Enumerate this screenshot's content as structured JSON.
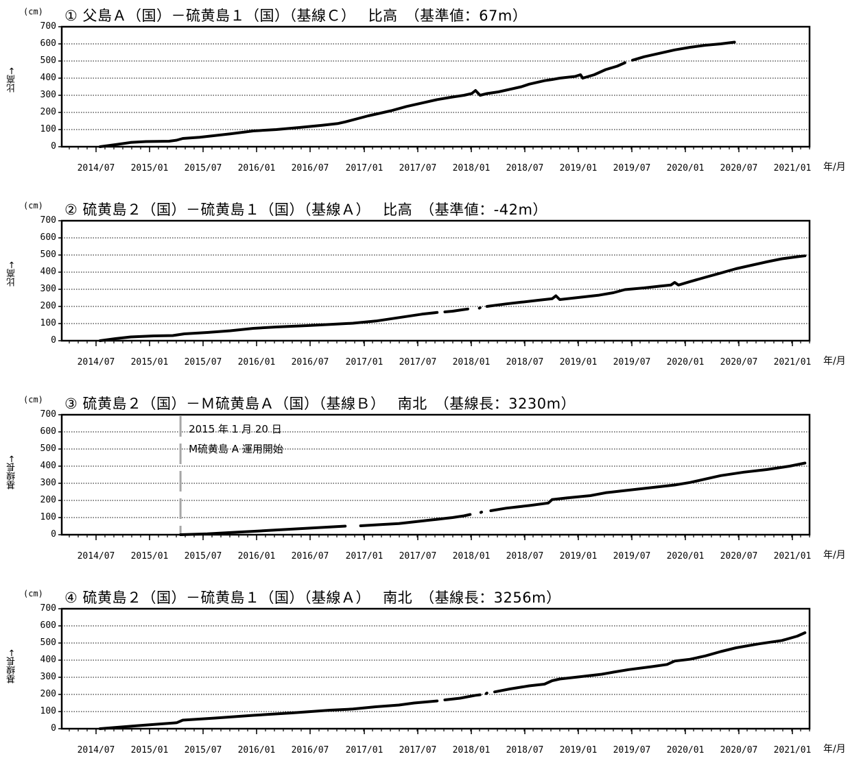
{
  "chart_data": [
    {
      "type": "line",
      "title": "① 父島Ａ（国）－硫黄島１（国）（基線Ｃ）　 比高　（基準値：67m）",
      "unit": "(cm)",
      "ylabel": "比高→",
      "xlabel": "年/月",
      "ylim": [
        0,
        700
      ],
      "yticks": [
        "0",
        "100",
        "200",
        "300",
        "400",
        "500",
        "600",
        "700"
      ],
      "xticks": [
        "2014/07",
        "2015/01",
        "2015/07",
        "2016/01",
        "2016/07",
        "2017/01",
        "2017/07",
        "2018/01",
        "2018/07",
        "2019/01",
        "2019/07",
        "2020/01",
        "2020/07",
        "2021/01"
      ],
      "grid": true,
      "series": [
        {
          "segments": [
            [
              [
                2014.0,
                0
              ],
              [
                2014.2,
                12
              ],
              [
                2014.4,
                25
              ],
              [
                2014.6,
                30
              ],
              [
                2014.9,
                32
              ],
              [
                2015.0,
                38
              ],
              [
                2015.08,
                48
              ],
              [
                2015.3,
                55
              ],
              [
                2015.5,
                65
              ],
              [
                2015.7,
                75
              ],
              [
                2016.0,
                92
              ],
              [
                2016.3,
                100
              ],
              [
                2016.6,
                112
              ],
              [
                2016.9,
                125
              ],
              [
                2017.1,
                135
              ],
              [
                2017.2,
                145
              ],
              [
                2017.5,
                180
              ],
              [
                2017.8,
                210
              ],
              [
                2018.0,
                235
              ],
              [
                2018.2,
                255
              ],
              [
                2018.4,
                275
              ],
              [
                2018.6,
                290
              ],
              [
                2018.75,
                300
              ],
              [
                2018.85,
                310
              ],
              [
                2018.9,
                328
              ],
              [
                2018.96,
                300
              ],
              [
                2019.05,
                310
              ],
              [
                2019.2,
                320
              ],
              [
                2019.5,
                350
              ],
              [
                2019.6,
                365
              ],
              [
                2019.8,
                385
              ],
              [
                2019.9,
                392
              ],
              [
                2020.0,
                400
              ],
              [
                2020.2,
                410
              ],
              [
                2020.27,
                420
              ],
              [
                2020.3,
                400
              ],
              [
                2020.45,
                420
              ],
              [
                2020.6,
                450
              ],
              [
                2020.75,
                470
              ],
              [
                2020.85,
                490
              ]
            ],
            [
              [
                2020.95,
                505
              ],
              [
                2021.1,
                525
              ],
              [
                2021.3,
                545
              ],
              [
                2021.5,
                565
              ],
              [
                2021.7,
                580
              ],
              [
                2021.9,
                592
              ],
              [
                2022.1,
                600
              ],
              [
                2022.28,
                610
              ]
            ]
          ]
        }
      ]
    },
    {
      "type": "line",
      "title": "② 硫黄島２（国）－硫黄島１（国）（基線Ａ）　 比高　（基準値：-42m）",
      "unit": "(cm)",
      "ylabel": "比高→",
      "xlabel": "年/月",
      "ylim": [
        0,
        700
      ],
      "yticks": [
        "0",
        "100",
        "200",
        "300",
        "400",
        "500",
        "600",
        "700"
      ],
      "xticks": [
        "2014/07",
        "2015/01",
        "2015/07",
        "2016/01",
        "2016/07",
        "2017/01",
        "2017/07",
        "2018/01",
        "2018/07",
        "2019/01",
        "2019/07",
        "2020/01",
        "2020/07",
        "2021/01"
      ],
      "grid": true,
      "series": [
        {
          "segments": [
            [
              [
                2014.0,
                0
              ],
              [
                2014.2,
                12
              ],
              [
                2014.4,
                22
              ],
              [
                2014.7,
                28
              ],
              [
                2014.95,
                30
              ],
              [
                2015.1,
                40
              ],
              [
                2015.4,
                48
              ],
              [
                2015.7,
                58
              ],
              [
                2016.0,
                72
              ],
              [
                2016.3,
                80
              ],
              [
                2016.7,
                88
              ],
              [
                2017.0,
                95
              ],
              [
                2017.3,
                102
              ],
              [
                2017.6,
                115
              ],
              [
                2017.9,
                135
              ],
              [
                2018.2,
                155
              ],
              [
                2018.4,
                165
              ]
            ],
            [
              [
                2018.5,
                168
              ],
              [
                2018.6,
                172
              ],
              [
                2018.72,
                180
              ],
              [
                2018.8,
                185
              ]
            ],
            [
              [
                2018.95,
                190
              ],
              [
                2018.96,
                193
              ]
            ],
            [
              [
                2019.05,
                200
              ],
              [
                2019.3,
                215
              ],
              [
                2019.5,
                225
              ],
              [
                2019.7,
                235
              ],
              [
                2019.9,
                245
              ],
              [
                2019.95,
                262
              ],
              [
                2020.0,
                240
              ],
              [
                2020.2,
                250
              ],
              [
                2020.5,
                265
              ],
              [
                2020.7,
                280
              ],
              [
                2020.85,
                298
              ],
              [
                2021.1,
                308
              ],
              [
                2021.3,
                318
              ],
              [
                2021.45,
                325
              ],
              [
                2021.5,
                340
              ],
              [
                2021.55,
                325
              ],
              [
                2021.7,
                345
              ],
              [
                2021.9,
                370
              ],
              [
                2022.1,
                395
              ],
              [
                2022.3,
                420
              ],
              [
                2022.5,
                440
              ],
              [
                2022.7,
                460
              ],
              [
                2022.9,
                478
              ],
              [
                2023.1,
                490
              ],
              [
                2023.2,
                495
              ]
            ]
          ]
        }
      ]
    },
    {
      "type": "line",
      "title": "③ 硫黄島２（国）－Ｍ硫黄島Ａ（国）（基線Ｂ）　 南北　（基線長：3230m）",
      "unit": "(cm)",
      "ylabel": "基線長→",
      "xlabel": "年/月",
      "ylim": [
        0,
        700
      ],
      "yticks": [
        "0",
        "100",
        "200",
        "300",
        "400",
        "500",
        "600",
        "700"
      ],
      "xticks": [
        "2014/07",
        "2015/01",
        "2015/07",
        "2016/01",
        "2016/07",
        "2017/01",
        "2017/07",
        "2018/01",
        "2018/07",
        "2019/01",
        "2019/07",
        "2020/01",
        "2020/07",
        "2021/01"
      ],
      "grid": true,
      "annotations": [
        {
          "text_line1": "2015 年 1 月 20 日",
          "text_line2": "M硫黄島 A 運用開始",
          "x": 2015.05
        }
      ],
      "series": [
        {
          "segments": [
            [
              [
                2015.05,
                0
              ],
              [
                2015.4,
                5
              ],
              [
                2015.8,
                15
              ],
              [
                2016.2,
                25
              ],
              [
                2016.6,
                35
              ],
              [
                2017.0,
                45
              ],
              [
                2017.2,
                50
              ]
            ],
            [
              [
                2017.4,
                52
              ],
              [
                2017.7,
                60
              ],
              [
                2017.9,
                65
              ],
              [
                2018.1,
                75
              ],
              [
                2018.3,
                85
              ],
              [
                2018.5,
                95
              ],
              [
                2018.6,
                100
              ],
              [
                2018.75,
                110
              ],
              [
                2018.83,
                118
              ]
            ],
            [
              [
                2018.97,
                130
              ],
              [
                2018.98,
                132
              ]
            ],
            [
              [
                2019.1,
                140
              ],
              [
                2019.3,
                155
              ],
              [
                2019.6,
                170
              ],
              [
                2019.85,
                185
              ],
              [
                2019.9,
                205
              ],
              [
                2020.1,
                215
              ],
              [
                2020.4,
                228
              ],
              [
                2020.6,
                245
              ],
              [
                2020.8,
                255
              ],
              [
                2021.0,
                265
              ],
              [
                2021.3,
                280
              ],
              [
                2021.5,
                290
              ],
              [
                2021.7,
                305
              ],
              [
                2021.9,
                325
              ],
              [
                2022.1,
                345
              ],
              [
                2022.4,
                365
              ],
              [
                2022.7,
                380
              ],
              [
                2023.0,
                400
              ],
              [
                2023.2,
                418
              ]
            ]
          ]
        }
      ]
    },
    {
      "type": "line",
      "title": "④ 硫黄島２（国）－硫黄島１（国）（基線Ａ）　 南北　（基線長：3256m）",
      "unit": "(cm)",
      "ylabel": "基線長→",
      "xlabel": "年/月",
      "ylim": [
        0,
        700
      ],
      "yticks": [
        "0",
        "100",
        "200",
        "300",
        "400",
        "500",
        "600",
        "700"
      ],
      "xticks": [
        "2014/07",
        "2015/01",
        "2015/07",
        "2016/01",
        "2016/07",
        "2017/01",
        "2017/07",
        "2018/01",
        "2018/07",
        "2019/01",
        "2019/07",
        "2020/01",
        "2020/07",
        "2021/01"
      ],
      "grid": true,
      "series": [
        {
          "segments": [
            [
              [
                2014.0,
                0
              ],
              [
                2014.5,
                18
              ],
              [
                2015.0,
                35
              ],
              [
                2015.08,
                50
              ],
              [
                2015.5,
                62
              ],
              [
                2016.0,
                78
              ],
              [
                2016.5,
                92
              ],
              [
                2017.0,
                108
              ],
              [
                2017.3,
                115
              ],
              [
                2017.6,
                128
              ],
              [
                2017.9,
                138
              ],
              [
                2018.1,
                150
              ],
              [
                2018.4,
                162
              ]
            ],
            [
              [
                2018.5,
                168
              ],
              [
                2018.7,
                178
              ],
              [
                2018.9,
                195
              ],
              [
                2018.96,
                198
              ]
            ],
            [
              [
                2019.04,
                205
              ],
              [
                2019.05,
                208
              ]
            ],
            [
              [
                2019.15,
                215
              ],
              [
                2019.35,
                232
              ],
              [
                2019.6,
                250
              ],
              [
                2019.8,
                260
              ],
              [
                2019.9,
                280
              ],
              [
                2020.0,
                290
              ],
              [
                2020.3,
                305
              ],
              [
                2020.55,
                318
              ],
              [
                2020.7,
                330
              ],
              [
                2020.9,
                345
              ],
              [
                2021.2,
                362
              ],
              [
                2021.4,
                375
              ],
              [
                2021.5,
                395
              ],
              [
                2021.7,
                405
              ],
              [
                2021.9,
                425
              ],
              [
                2022.1,
                450
              ],
              [
                2022.3,
                472
              ],
              [
                2022.6,
                495
              ],
              [
                2022.9,
                515
              ],
              [
                2023.1,
                540
              ],
              [
                2023.2,
                560
              ]
            ]
          ]
        }
      ]
    }
  ]
}
